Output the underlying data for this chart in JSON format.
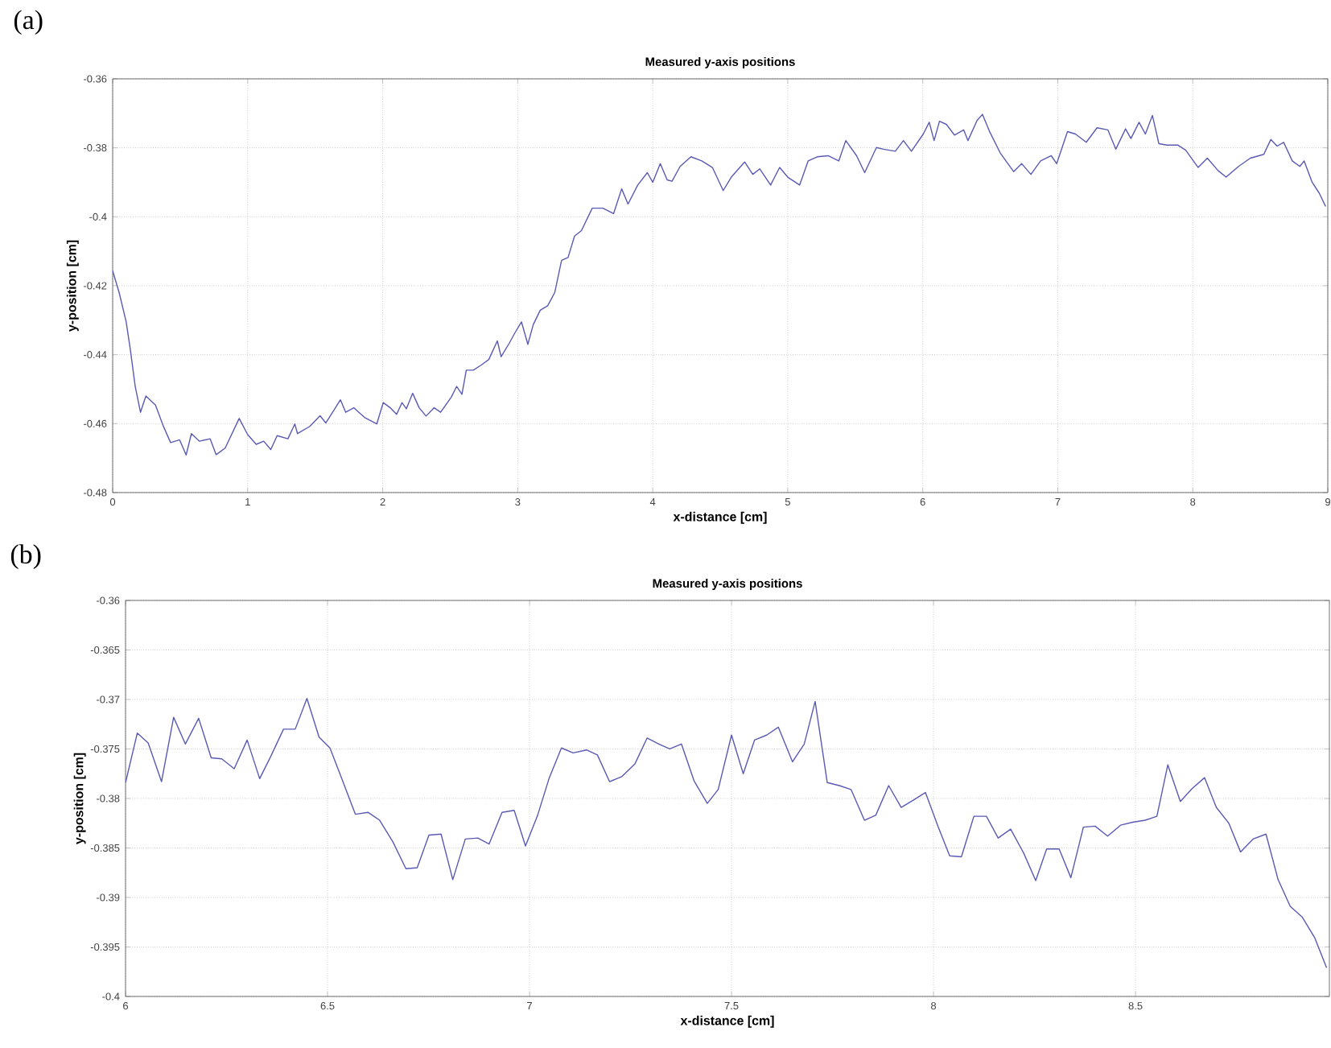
{
  "chart_data": [
    {
      "type": "line",
      "title": "Measured y-axis positions",
      "xlabel": "x-distance [cm]",
      "ylabel": "y-position [cm]",
      "annotations": [
        "(a)"
      ],
      "color": "#5a5ab4",
      "grid": true,
      "xlim": [
        0,
        9
      ],
      "ylim": [
        -0.48,
        -0.36
      ],
      "xticks": [
        0,
        1,
        2,
        3,
        4,
        5,
        6,
        7,
        8,
        9
      ],
      "yticks": [
        -0.48,
        -0.46,
        -0.44,
        -0.42,
        -0.4,
        -0.38,
        -0.36
      ],
      "x": [
        0,
        0.048,
        0.1,
        0.13,
        0.167,
        0.206,
        0.246,
        0.317,
        0.377,
        0.429,
        0.496,
        0.544,
        0.583,
        0.643,
        0.722,
        0.766,
        0.833,
        0.937,
        1.0,
        1.063,
        1.119,
        1.171,
        1.218,
        1.298,
        1.349,
        1.369,
        1.46,
        1.536,
        1.579,
        1.687,
        1.726,
        1.786,
        1.865,
        1.956,
        2.004,
        2.056,
        2.103,
        2.143,
        2.175,
        2.222,
        2.27,
        2.321,
        2.381,
        2.429,
        2.508,
        2.548,
        2.587,
        2.619,
        2.671,
        2.73,
        2.786,
        2.849,
        2.877,
        2.937,
        2.976,
        3.028,
        3.075,
        3.115,
        3.167,
        3.222,
        3.274,
        3.325,
        3.373,
        3.421,
        3.472,
        3.552,
        3.631,
        3.71,
        3.77,
        3.817,
        3.889,
        3.96,
        4.0,
        4.056,
        4.107,
        4.143,
        4.203,
        4.283,
        4.363,
        4.442,
        4.522,
        4.582,
        4.681,
        4.741,
        4.793,
        4.873,
        4.94,
        5.0,
        5.088,
        5.151,
        5.219,
        5.299,
        5.378,
        5.43,
        5.51,
        5.57,
        5.657,
        5.709,
        5.797,
        5.857,
        5.916,
        6.004,
        6.048,
        6.084,
        6.124,
        6.175,
        6.235,
        6.303,
        6.335,
        6.402,
        6.442,
        6.494,
        6.574,
        6.673,
        6.733,
        6.801,
        6.873,
        6.952,
        6.992,
        7.072,
        7.131,
        7.211,
        7.291,
        7.371,
        7.43,
        7.502,
        7.542,
        7.602,
        7.649,
        7.701,
        7.749,
        7.809,
        7.888,
        7.948,
        8.04,
        8.108,
        8.187,
        8.247,
        8.339,
        8.426,
        8.526,
        8.578,
        8.625,
        8.673,
        8.737,
        8.793,
        8.825,
        8.884,
        8.936,
        8.984
      ],
      "values": [
        -0.4157,
        -0.422,
        -0.4305,
        -0.4383,
        -0.4492,
        -0.4567,
        -0.452,
        -0.4546,
        -0.4609,
        -0.4655,
        -0.4647,
        -0.4691,
        -0.4629,
        -0.4651,
        -0.4644,
        -0.469,
        -0.4671,
        -0.4585,
        -0.4632,
        -0.466,
        -0.4651,
        -0.4675,
        -0.4635,
        -0.4644,
        -0.4601,
        -0.4629,
        -0.4608,
        -0.4577,
        -0.4598,
        -0.4531,
        -0.4567,
        -0.4554,
        -0.4582,
        -0.4601,
        -0.4539,
        -0.4554,
        -0.4573,
        -0.4539,
        -0.4557,
        -0.4512,
        -0.4554,
        -0.4578,
        -0.4554,
        -0.4567,
        -0.4523,
        -0.4492,
        -0.4515,
        -0.4445,
        -0.4445,
        -0.443,
        -0.4414,
        -0.436,
        -0.4406,
        -0.4367,
        -0.4339,
        -0.4305,
        -0.437,
        -0.4313,
        -0.4271,
        -0.4258,
        -0.422,
        -0.4126,
        -0.4118,
        -0.4056,
        -0.404,
        -0.3975,
        -0.3975,
        -0.3991,
        -0.3919,
        -0.3963,
        -0.3908,
        -0.3872,
        -0.39,
        -0.3846,
        -0.3893,
        -0.3897,
        -0.3854,
        -0.3826,
        -0.3838,
        -0.3857,
        -0.3924,
        -0.3885,
        -0.3841,
        -0.3877,
        -0.3861,
        -0.3908,
        -0.3857,
        -0.3885,
        -0.3908,
        -0.3838,
        -0.3826,
        -0.3823,
        -0.3838,
        -0.3779,
        -0.3823,
        -0.3872,
        -0.3799,
        -0.3804,
        -0.381,
        -0.3779,
        -0.381,
        -0.376,
        -0.3726,
        -0.3779,
        -0.3723,
        -0.3732,
        -0.3763,
        -0.3748,
        -0.3779,
        -0.3721,
        -0.3703,
        -0.3752,
        -0.3815,
        -0.3869,
        -0.3846,
        -0.3877,
        -0.3838,
        -0.3823,
        -0.3846,
        -0.3753,
        -0.376,
        -0.3784,
        -0.3742,
        -0.3748,
        -0.3804,
        -0.3745,
        -0.3773,
        -0.3726,
        -0.376,
        -0.3706,
        -0.3788,
        -0.3792,
        -0.3792,
        -0.3807,
        -0.3857,
        -0.383,
        -0.3866,
        -0.3885,
        -0.3854,
        -0.383,
        -0.3819,
        -0.3776,
        -0.3795,
        -0.3784,
        -0.3838,
        -0.3854,
        -0.3838,
        -0.39,
        -0.3931,
        -0.397
      ]
    },
    {
      "type": "line",
      "title": "Measured y-axis positions",
      "xlabel": "x-distance [cm]",
      "ylabel": "y-position [cm]",
      "annotations": [
        "(b)"
      ],
      "color": "#5a5ab4",
      "grid": true,
      "xlim": [
        6,
        8.98
      ],
      "ylim": [
        -0.4,
        -0.36
      ],
      "xticks": [
        6,
        6.5,
        7,
        7.5,
        8,
        8.5
      ],
      "yticks": [
        -0.4,
        -0.395,
        -0.39,
        -0.385,
        -0.38,
        -0.375,
        -0.37,
        -0.365,
        -0.36
      ],
      "x": [
        6,
        6.029,
        6.056,
        6.089,
        6.119,
        6.148,
        6.181,
        6.212,
        6.238,
        6.269,
        6.301,
        6.332,
        6.36,
        6.391,
        6.42,
        6.449,
        6.479,
        6.506,
        6.539,
        6.569,
        6.6,
        6.629,
        6.662,
        6.694,
        6.722,
        6.751,
        6.781,
        6.81,
        6.841,
        6.872,
        6.9,
        6.932,
        6.962,
        6.99,
        7.02,
        7.049,
        7.079,
        7.108,
        7.141,
        7.168,
        7.198,
        7.228,
        7.261,
        7.291,
        7.32,
        7.347,
        7.376,
        7.407,
        7.44,
        7.467,
        7.5,
        7.529,
        7.557,
        7.587,
        7.616,
        7.651,
        7.68,
        7.707,
        7.737,
        7.767,
        7.796,
        7.829,
        7.857,
        7.889,
        7.92,
        7.949,
        7.98,
        8.011,
        8.04,
        8.069,
        8.1,
        8.131,
        8.16,
        8.191,
        8.223,
        8.253,
        8.28,
        8.311,
        8.34,
        8.371,
        8.4,
        8.431,
        8.463,
        8.493,
        8.524,
        8.553,
        8.58,
        8.611,
        8.64,
        8.671,
        8.7,
        8.731,
        8.76,
        8.791,
        8.823,
        8.853,
        8.883,
        8.913,
        8.944,
        8.973
      ],
      "values": [
        -0.3784,
        -0.3734,
        -0.3744,
        -0.3783,
        -0.3718,
        -0.3745,
        -0.3719,
        -0.3759,
        -0.376,
        -0.377,
        -0.3741,
        -0.378,
        -0.3757,
        -0.373,
        -0.373,
        -0.3699,
        -0.3738,
        -0.3749,
        -0.3784,
        -0.3816,
        -0.3814,
        -0.3822,
        -0.3844,
        -0.3871,
        -0.387,
        -0.3837,
        -0.3836,
        -0.3882,
        -0.3841,
        -0.384,
        -0.3846,
        -0.3814,
        -0.3812,
        -0.3848,
        -0.3817,
        -0.3779,
        -0.3749,
        -0.3754,
        -0.3751,
        -0.3756,
        -0.3783,
        -0.3778,
        -0.3765,
        -0.3739,
        -0.3745,
        -0.375,
        -0.3745,
        -0.3782,
        -0.3805,
        -0.3791,
        -0.3736,
        -0.3775,
        -0.3741,
        -0.3736,
        -0.3728,
        -0.3763,
        -0.3745,
        -0.3702,
        -0.3784,
        -0.3787,
        -0.3791,
        -0.3822,
        -0.3817,
        -0.3787,
        -0.3809,
        -0.3802,
        -0.3794,
        -0.3828,
        -0.3858,
        -0.3859,
        -0.3818,
        -0.3818,
        -0.384,
        -0.3831,
        -0.3855,
        -0.3883,
        -0.3851,
        -0.3851,
        -0.388,
        -0.3829,
        -0.3828,
        -0.3838,
        -0.3827,
        -0.3824,
        -0.3822,
        -0.3818,
        -0.3766,
        -0.3803,
        -0.379,
        -0.3779,
        -0.3809,
        -0.3825,
        -0.3854,
        -0.3841,
        -0.3836,
        -0.3882,
        -0.3909,
        -0.392,
        -0.3941,
        -0.3971
      ]
    }
  ]
}
